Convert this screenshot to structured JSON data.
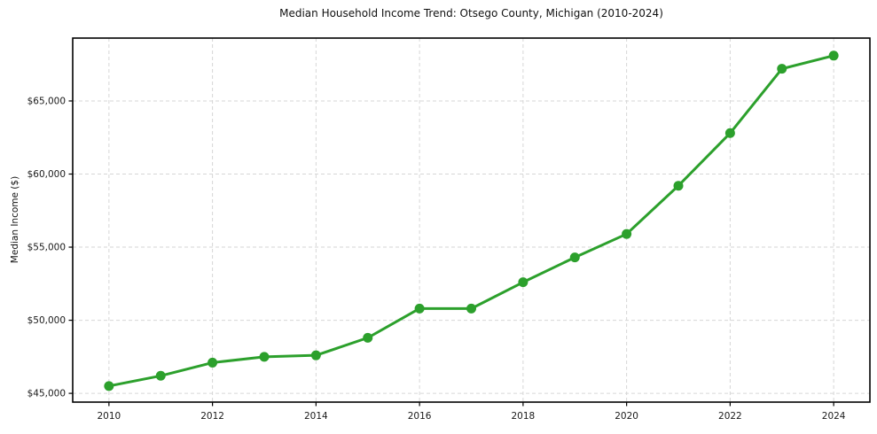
{
  "chart_data": {
    "type": "line",
    "title": "Median Household Income Trend: Otsego County, Michigan (2010-2024)",
    "xlabel": "",
    "ylabel": "Median Income ($)",
    "x": [
      2010,
      2011,
      2012,
      2013,
      2014,
      2015,
      2016,
      2017,
      2018,
      2019,
      2020,
      2021,
      2022,
      2023,
      2024
    ],
    "values": [
      45500,
      46200,
      47100,
      47500,
      47600,
      48800,
      50800,
      50800,
      52600,
      54300,
      55900,
      59200,
      62800,
      67200,
      68100
    ],
    "xlim": [
      2009.3,
      2024.7
    ],
    "ylim": [
      44400,
      69300
    ],
    "xticks": [
      2010,
      2012,
      2014,
      2016,
      2018,
      2020,
      2022,
      2024
    ],
    "xtick_labels": [
      "2010",
      "2012",
      "2014",
      "2016",
      "2018",
      "2020",
      "2022",
      "2024"
    ],
    "yticks": [
      45000,
      50000,
      55000,
      60000,
      65000
    ],
    "ytick_labels": [
      "$45,000",
      "$50,000",
      "$55,000",
      "$60,000",
      "$65,000"
    ],
    "grid": true,
    "grid_style": "dashed",
    "legend": "none",
    "line_color": "#2ca02c",
    "marker": "circle",
    "grid_color": "#d6d6d6",
    "spine_color": "#000000",
    "text_color": "#1a1a1a"
  }
}
